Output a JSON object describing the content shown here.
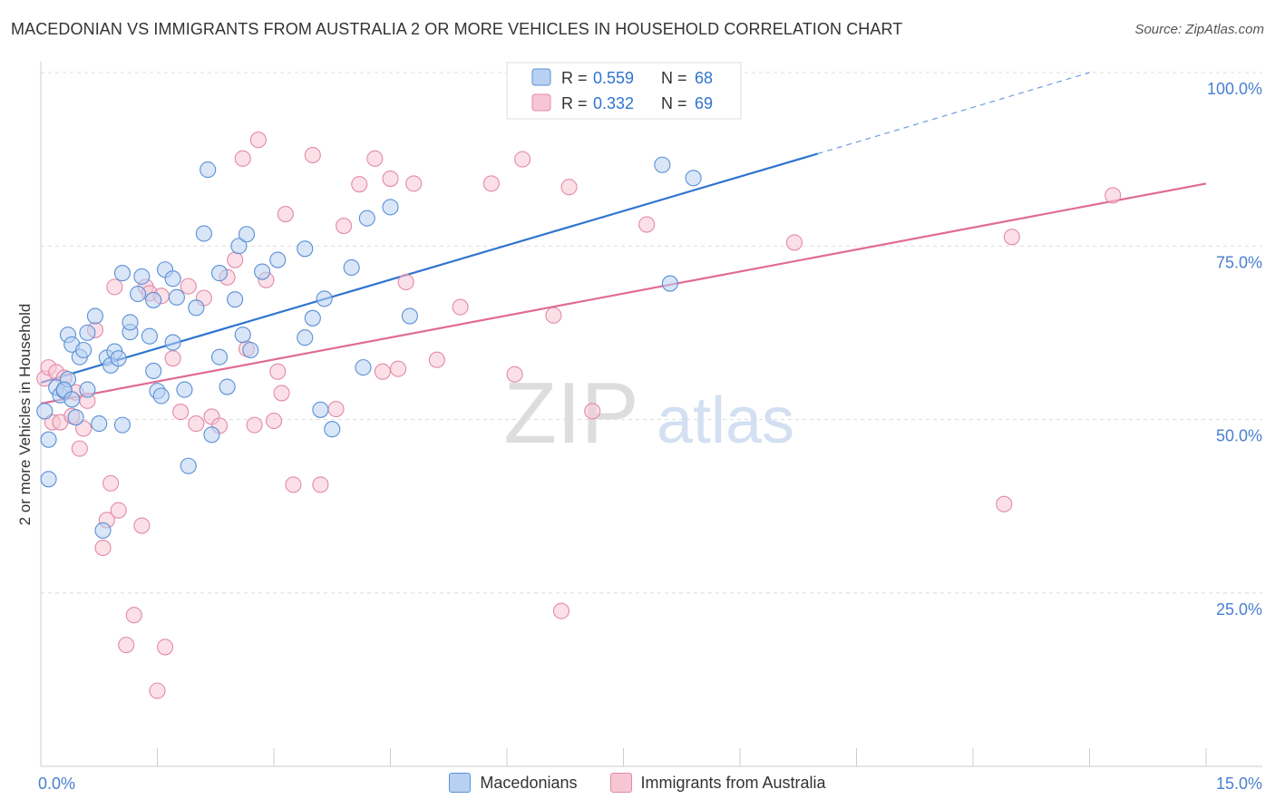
{
  "header": {
    "title": "MACEDONIAN VS IMMIGRANTS FROM AUSTRALIA 2 OR MORE VEHICLES IN HOUSEHOLD CORRELATION CHART",
    "source": "Source: ZipAtlas.com"
  },
  "watermark": {
    "zip": "ZIP",
    "atlas": "atlas"
  },
  "colors": {
    "blue": "#5b8fd6",
    "blue_fill": "#b8d1f3",
    "blue_line": "#2f74d0",
    "pink": "#e38aa6",
    "pink_fill": "#f7c6d5",
    "pink_line": "#e06b94",
    "tick_text": "#4a7fd0"
  },
  "legend_box": {
    "row1": {
      "r_label": "R = ",
      "r_value": "0.559",
      "n_label": "N = ",
      "n_value": "68"
    },
    "row2": {
      "r_label": "R = ",
      "r_value": "0.332",
      "n_label": "N = ",
      "n_value": "69"
    }
  },
  "legend_bottom": {
    "series1": "Macedonians",
    "series2": "Immigrants from Australia"
  },
  "chart_data": {
    "type": "scatter",
    "title": "MACEDONIAN VS IMMIGRANTS FROM AUSTRALIA 2 OR MORE VEHICLES IN HOUSEHOLD CORRELATION CHART",
    "xlabel": "",
    "ylabel": "2 or more Vehicles in Household",
    "xlim": [
      0,
      15
    ],
    "ylim": [
      0,
      100
    ],
    "x_tick_labels": [
      "0.0%",
      "15.0%"
    ],
    "y_ticks": [
      25,
      50,
      75,
      100
    ],
    "y_tick_labels": [
      "25.0%",
      "50.0%",
      "75.0%",
      "100.0%"
    ],
    "grid": "horizontal dashed",
    "series": [
      {
        "name": "Macedonians",
        "R": 0.559,
        "N": 68,
        "trend": {
          "x0": 0.0,
          "y0": 55.3,
          "x1": 10.0,
          "y1": 88.3,
          "dashed_to_x": 13.5,
          "dashed_to_y": 100.0
        },
        "points": [
          [
            0.05,
            51.2
          ],
          [
            0.1,
            47.1
          ],
          [
            0.1,
            41.4
          ],
          [
            0.2,
            54.6
          ],
          [
            0.25,
            53.5
          ],
          [
            0.3,
            54.1
          ],
          [
            0.35,
            55.8
          ],
          [
            0.3,
            54.3
          ],
          [
            0.4,
            52.9
          ],
          [
            0.35,
            62.2
          ],
          [
            0.45,
            50.3
          ],
          [
            0.4,
            60.8
          ],
          [
            0.5,
            59.0
          ],
          [
            0.55,
            60.0
          ],
          [
            0.6,
            62.5
          ],
          [
            0.7,
            64.9
          ],
          [
            0.75,
            49.4
          ],
          [
            0.8,
            34.0
          ],
          [
            0.85,
            58.9
          ],
          [
            0.9,
            57.8
          ],
          [
            0.95,
            59.8
          ],
          [
            1.0,
            58.8
          ],
          [
            1.05,
            49.2
          ],
          [
            1.05,
            71.1
          ],
          [
            1.15,
            62.6
          ],
          [
            1.15,
            64.0
          ],
          [
            1.25,
            68.1
          ],
          [
            1.3,
            70.6
          ],
          [
            1.4,
            62.0
          ],
          [
            1.45,
            57.0
          ],
          [
            1.45,
            67.2
          ],
          [
            1.5,
            54.1
          ],
          [
            1.55,
            53.4
          ],
          [
            1.6,
            71.6
          ],
          [
            1.7,
            61.1
          ],
          [
            1.75,
            67.6
          ],
          [
            1.85,
            54.3
          ],
          [
            1.9,
            43.3
          ],
          [
            1.7,
            70.3
          ],
          [
            2.0,
            66.1
          ],
          [
            2.1,
            76.8
          ],
          [
            2.15,
            86.0
          ],
          [
            2.2,
            47.8
          ],
          [
            2.3,
            59.0
          ],
          [
            2.3,
            71.1
          ],
          [
            2.4,
            54.7
          ],
          [
            2.5,
            67.3
          ],
          [
            2.55,
            75.0
          ],
          [
            2.6,
            62.2
          ],
          [
            2.65,
            76.7
          ],
          [
            2.7,
            60.0
          ],
          [
            2.85,
            71.3
          ],
          [
            3.05,
            73.0
          ],
          [
            3.4,
            74.6
          ],
          [
            3.4,
            61.8
          ],
          [
            3.5,
            64.6
          ],
          [
            3.6,
            51.4
          ],
          [
            3.65,
            67.4
          ],
          [
            3.75,
            48.6
          ],
          [
            4.0,
            71.9
          ],
          [
            4.15,
            57.5
          ],
          [
            4.2,
            79.0
          ],
          [
            4.5,
            80.6
          ],
          [
            4.75,
            64.9
          ],
          [
            8.0,
            86.7
          ],
          [
            8.1,
            69.6
          ],
          [
            8.4,
            84.8
          ],
          [
            0.6,
            54.3
          ]
        ]
      },
      {
        "name": "Immigrants from Australia",
        "R": 0.332,
        "N": 69,
        "trend": {
          "x0": 0.0,
          "y0": 52.3,
          "x1": 15.0,
          "y1": 84.0
        },
        "points": [
          [
            0.05,
            55.9
          ],
          [
            0.1,
            57.5
          ],
          [
            0.15,
            49.6
          ],
          [
            0.2,
            56.8
          ],
          [
            0.25,
            49.6
          ],
          [
            0.3,
            56.0
          ],
          [
            0.4,
            50.5
          ],
          [
            0.45,
            53.9
          ],
          [
            0.5,
            45.8
          ],
          [
            0.6,
            52.7
          ],
          [
            0.7,
            62.9
          ],
          [
            0.8,
            31.5
          ],
          [
            0.85,
            35.5
          ],
          [
            0.9,
            40.8
          ],
          [
            0.95,
            69.1
          ],
          [
            1.0,
            36.9
          ],
          [
            1.1,
            17.5
          ],
          [
            1.2,
            21.8
          ],
          [
            1.3,
            34.7
          ],
          [
            1.35,
            69.1
          ],
          [
            1.4,
            68.2
          ],
          [
            1.5,
            10.9
          ],
          [
            1.55,
            67.8
          ],
          [
            1.6,
            17.2
          ],
          [
            1.7,
            58.8
          ],
          [
            1.8,
            51.1
          ],
          [
            1.9,
            69.2
          ],
          [
            2.0,
            49.4
          ],
          [
            2.1,
            67.5
          ],
          [
            2.2,
            50.4
          ],
          [
            2.3,
            49.1
          ],
          [
            2.4,
            70.5
          ],
          [
            2.5,
            73.0
          ],
          [
            2.6,
            87.6
          ],
          [
            2.65,
            60.2
          ],
          [
            2.75,
            49.2
          ],
          [
            2.8,
            90.3
          ],
          [
            2.9,
            70.1
          ],
          [
            3.0,
            49.8
          ],
          [
            3.05,
            56.9
          ],
          [
            3.1,
            53.8
          ],
          [
            3.15,
            79.6
          ],
          [
            3.25,
            40.6
          ],
          [
            3.5,
            88.1
          ],
          [
            3.6,
            40.6
          ],
          [
            3.8,
            51.5
          ],
          [
            3.9,
            77.9
          ],
          [
            4.1,
            83.9
          ],
          [
            4.3,
            87.6
          ],
          [
            4.4,
            56.9
          ],
          [
            4.5,
            84.7
          ],
          [
            4.6,
            57.3
          ],
          [
            4.7,
            69.8
          ],
          [
            4.8,
            84.0
          ],
          [
            5.1,
            58.6
          ],
          [
            5.4,
            66.2
          ],
          [
            5.8,
            84.0
          ],
          [
            6.1,
            56.5
          ],
          [
            6.2,
            87.5
          ],
          [
            6.6,
            65.0
          ],
          [
            6.7,
            22.4
          ],
          [
            6.8,
            83.5
          ],
          [
            7.1,
            51.2
          ],
          [
            7.8,
            78.1
          ],
          [
            9.7,
            75.5
          ],
          [
            12.4,
            37.8
          ],
          [
            12.5,
            76.3
          ],
          [
            13.8,
            82.3
          ],
          [
            0.55,
            48.7
          ]
        ]
      }
    ]
  }
}
